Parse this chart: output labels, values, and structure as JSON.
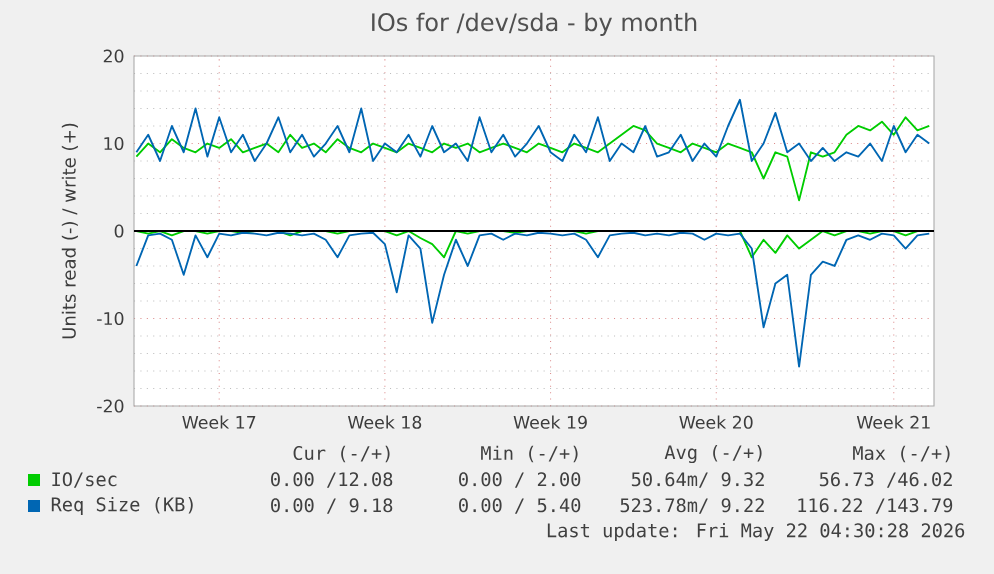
{
  "chart_data": {
    "type": "line",
    "title": "IOs for /dev/sda - by month",
    "ylabel": "Units read (-) / write (+)",
    "categories": [
      null,
      null,
      null,
      null,
      null,
      null,
      null,
      "Week 17",
      null,
      null,
      null,
      null,
      null,
      null,
      null,
      null,
      null,
      null,
      null,
      null,
      null,
      "Week 18",
      null,
      null,
      null,
      null,
      null,
      null,
      null,
      null,
      null,
      null,
      null,
      null,
      null,
      "Week 19",
      null,
      null,
      null,
      null,
      null,
      null,
      null,
      null,
      null,
      null,
      null,
      null,
      null,
      "Week 20",
      null,
      null,
      null,
      null,
      null,
      null,
      null,
      null,
      null,
      null,
      null,
      null,
      null,
      null,
      "Week 21",
      null,
      null,
      null
    ],
    "ylim": [
      -20,
      20
    ],
    "yticks": [
      -20,
      -10,
      0,
      10,
      20
    ],
    "grid": true,
    "legend": "bottom",
    "series": [
      {
        "name": "IO/sec",
        "color": "#00cc00",
        "values": [
          8.5,
          10,
          9,
          10.5,
          9.5,
          9,
          10,
          9.5,
          10.5,
          9,
          9.5,
          10,
          9,
          11,
          9.5,
          10,
          9,
          10.5,
          9.5,
          9,
          10,
          9.5,
          9,
          10,
          9.5,
          9,
          10,
          9.5,
          10,
          9,
          9.5,
          10,
          9.5,
          9,
          10,
          9.5,
          9,
          10,
          9.5,
          9,
          10,
          11,
          12,
          11.5,
          10,
          9.5,
          9,
          10,
          9.5,
          9,
          10,
          9.5,
          9,
          6,
          9,
          8.5,
          3.5,
          9,
          8.5,
          9,
          11,
          12,
          11.5,
          12.5,
          11,
          13,
          11.5,
          12
        ]
      },
      {
        "name": "Req Size (KB)",
        "color": "#0066b3",
        "values": [
          9,
          11,
          8,
          12,
          9,
          14,
          8.5,
          13,
          9,
          11,
          8,
          10,
          13,
          9,
          11,
          8.5,
          10,
          12,
          9,
          14,
          8,
          10,
          9,
          11,
          8.5,
          12,
          9,
          10,
          8,
          13,
          9,
          11,
          8.5,
          10,
          12,
          9,
          8,
          11,
          9,
          13,
          8,
          10,
          9,
          12,
          8.5,
          9,
          11,
          8,
          10,
          8.5,
          12,
          15,
          8,
          10,
          13.5,
          9,
          10,
          8,
          9.5,
          8,
          9,
          8.5,
          10,
          8,
          12,
          9,
          11,
          10
        ]
      },
      {
        "color": "#00cc00",
        "values": [
          0,
          -0.3,
          0,
          -0.5,
          0,
          0,
          -0.3,
          0,
          0,
          -0.2,
          0,
          0,
          0,
          -0.5,
          0,
          0,
          0,
          -0.3,
          0,
          0,
          0,
          0,
          -0.5,
          0,
          -0.8,
          -1.5,
          -3,
          0,
          -0.3,
          0,
          0,
          0,
          -0.2,
          0,
          0,
          0,
          0,
          0,
          -0.3,
          0,
          0,
          0,
          0,
          0,
          0,
          0,
          0,
          0,
          0,
          0,
          0,
          0,
          -3,
          -1,
          -2.5,
          -0.5,
          -2,
          -1,
          0,
          -0.5,
          0,
          0,
          -0.3,
          0,
          0,
          -0.5,
          0,
          0
        ]
      },
      {
        "color": "#0066b3",
        "values": [
          -4,
          -0.5,
          -0.3,
          -1,
          -5,
          -0.5,
          -3,
          -0.3,
          -0.5,
          -0.2,
          -0.3,
          -0.5,
          -0.2,
          -0.3,
          -0.5,
          -0.3,
          -1,
          -3,
          -0.5,
          -0.3,
          -0.2,
          -1.5,
          -7,
          -0.5,
          -2,
          -10.5,
          -5,
          -1,
          -4,
          -0.5,
          -0.3,
          -1,
          -0.3,
          -0.5,
          -0.2,
          -0.3,
          -0.5,
          -0.3,
          -1,
          -3,
          -0.5,
          -0.3,
          -0.2,
          -0.5,
          -0.3,
          -0.5,
          -0.2,
          -0.3,
          -1,
          -0.3,
          -0.5,
          -0.3,
          -2,
          -11,
          -6,
          -5,
          -15.5,
          -5,
          -3.5,
          -4,
          -1,
          -0.5,
          -1,
          -0.3,
          -0.5,
          -2,
          -0.5,
          -0.3
        ]
      }
    ],
    "ref_lines": [
      {
        "axis": "y",
        "value": 0,
        "color": "#000000"
      }
    ],
    "annotations": [
      "Cur (-/+)",
      "Min (-/+)",
      "Avg (-/+)",
      "Max (-/+)",
      "0.00 /12.08",
      "0.00 / 2.00",
      "50.64m/ 9.32",
      "56.73 /46.02",
      "0.00 / 9.18",
      "0.00 / 5.40",
      "523.78m/ 9.22",
      "116.22 /143.79",
      "Last update: Fri May 22 04:30:28 2026"
    ]
  }
}
